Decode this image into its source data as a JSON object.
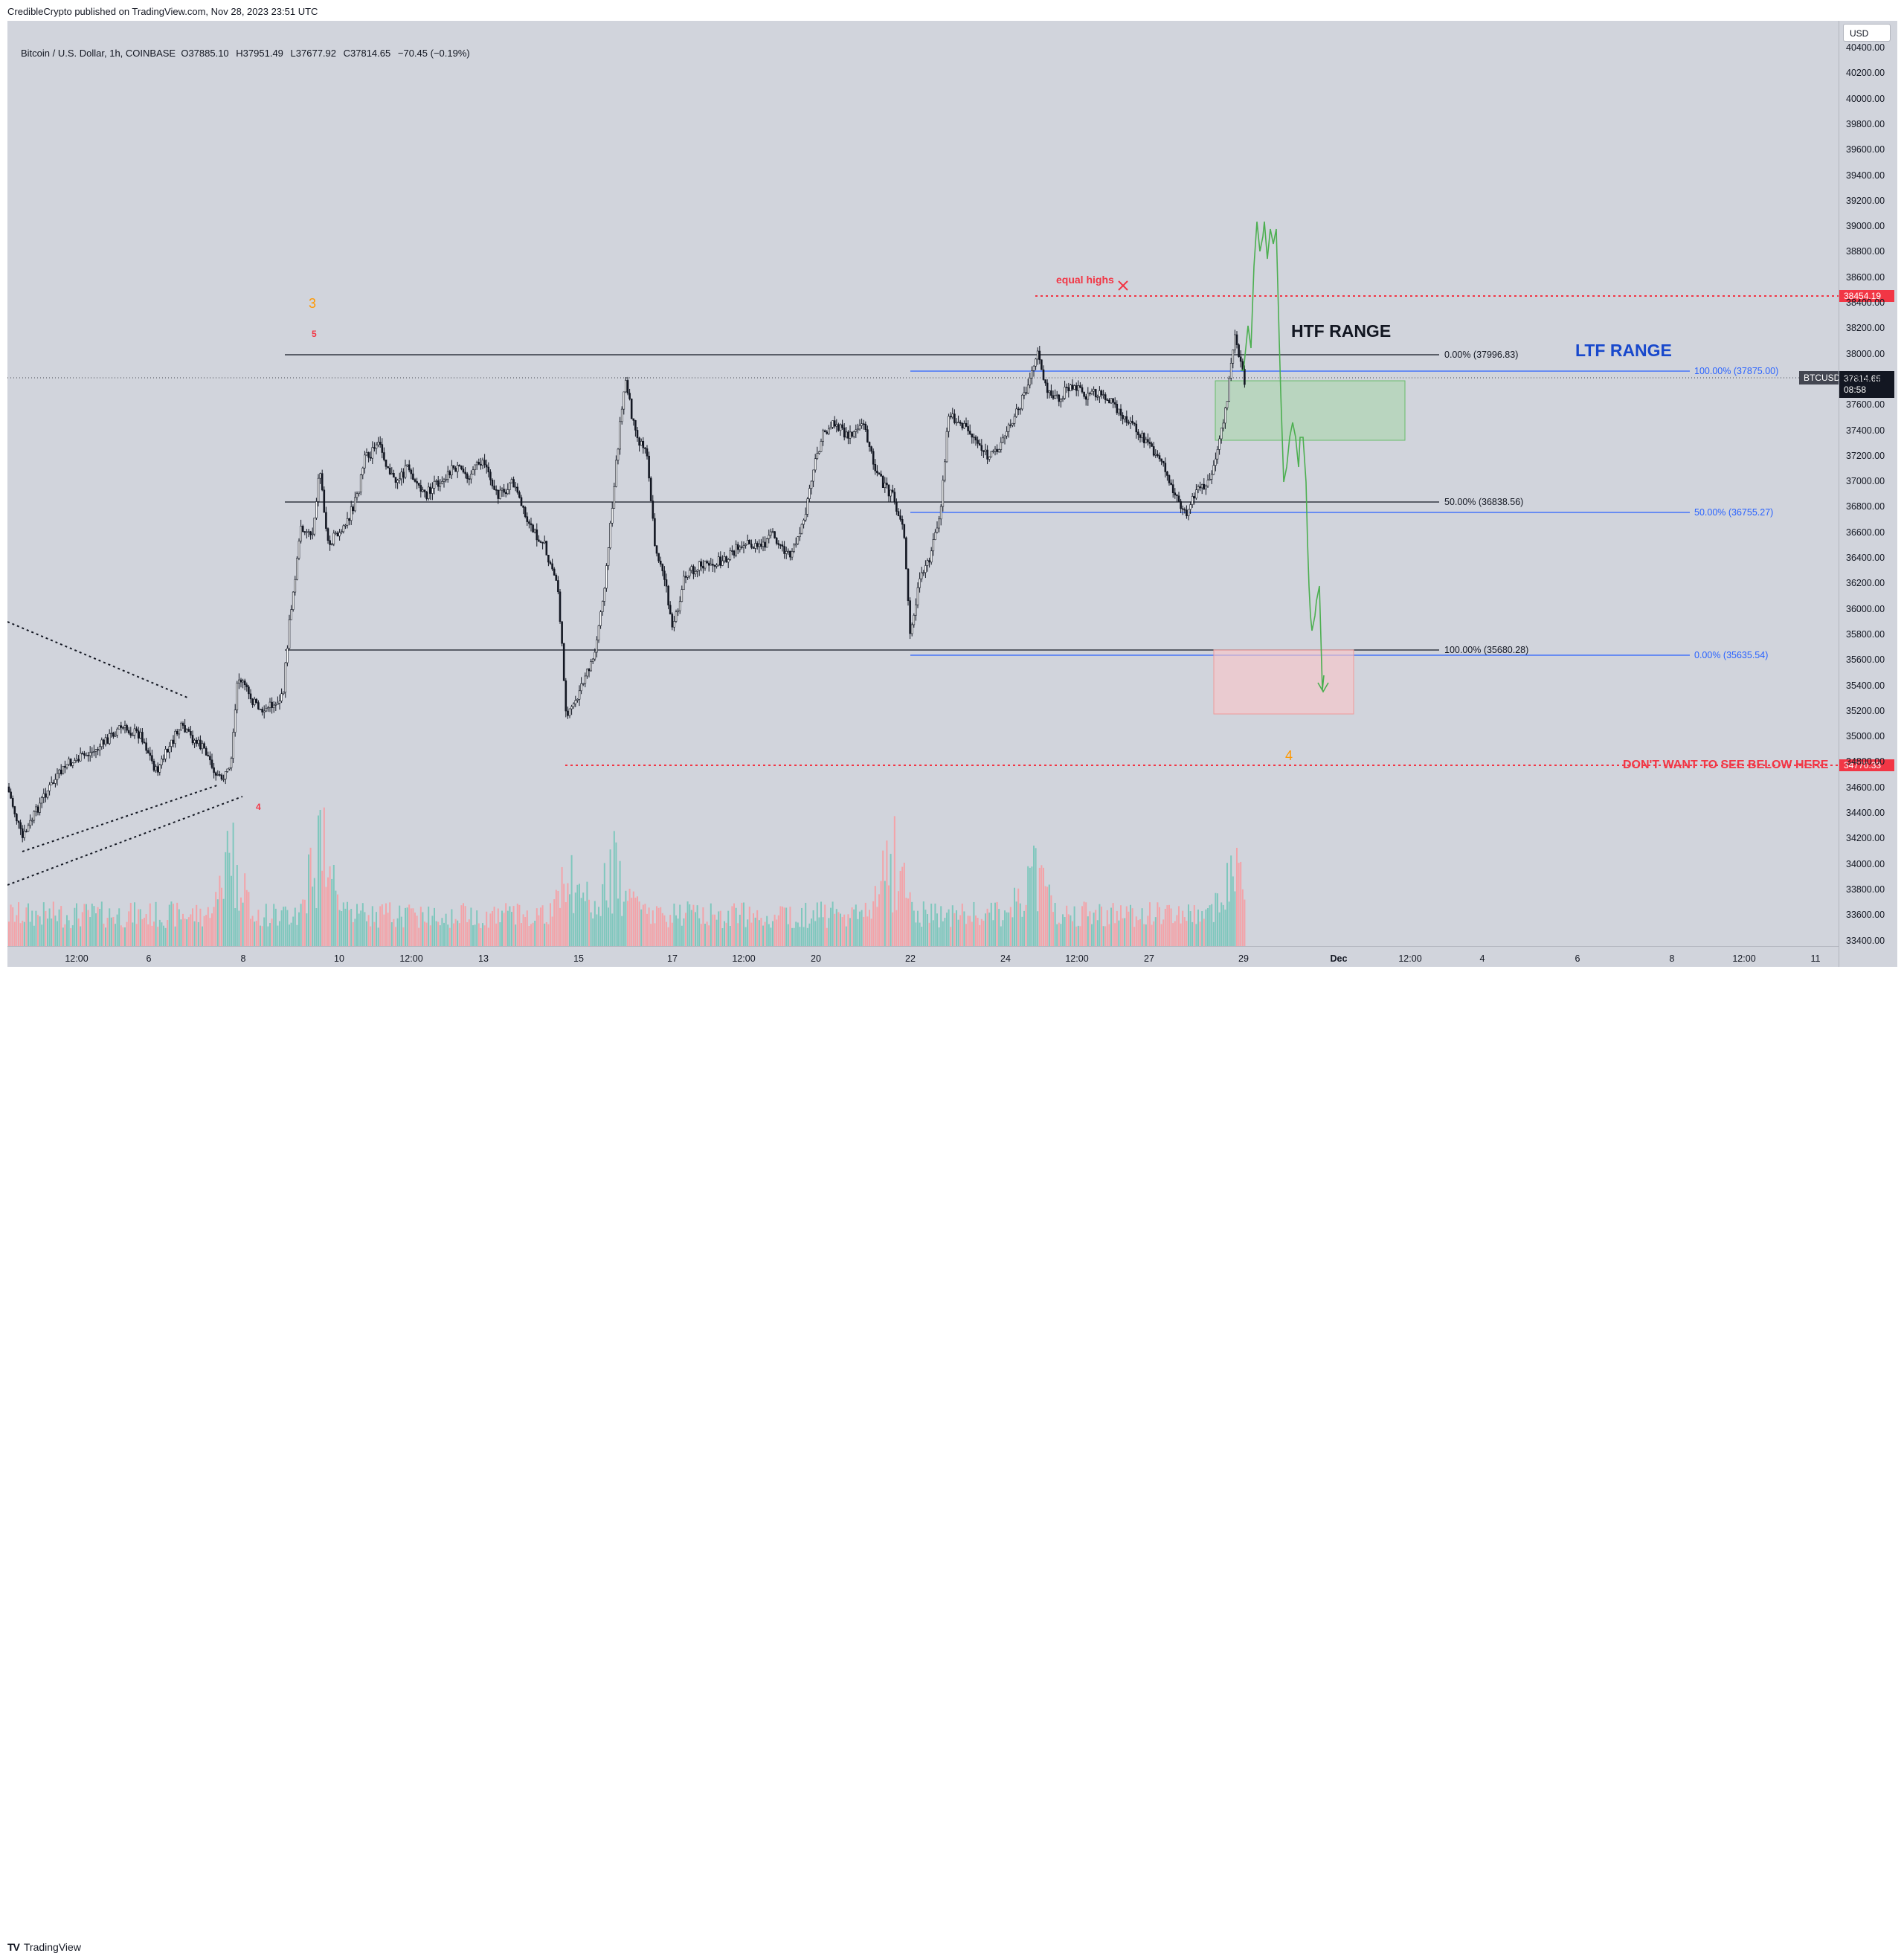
{
  "header": {
    "publisher_text": "CredibleCrypto published on TradingView.com, Nov 28, 2023 23:51 UTC"
  },
  "symbol": {
    "name": "Bitcoin / U.S. Dollar, 1h, COINBASE",
    "open": "O37885.10",
    "high": "H37951.49",
    "low": "L37677.92",
    "close": "C37814.65",
    "change": "−70.45 (−0.19%)"
  },
  "currency_button": "USD",
  "price_axis": {
    "ticks": [
      "40400.00",
      "40200.00",
      "40000.00",
      "39800.00",
      "39600.00",
      "39400.00",
      "39200.00",
      "39000.00",
      "38800.00",
      "38600.00",
      "38400.00",
      "38200.00",
      "38000.00",
      "37800.00",
      "37600.00",
      "37400.00",
      "37200.00",
      "37000.00",
      "36800.00",
      "36600.00",
      "36400.00",
      "36200.00",
      "36000.00",
      "35800.00",
      "35600.00",
      "35400.00",
      "35200.00",
      "35000.00",
      "34800.00",
      "34600.00",
      "34400.00",
      "34200.00",
      "34000.00",
      "33800.00",
      "33600.00",
      "33400.00"
    ],
    "equal_highs_tag": "38454.19",
    "dont_want_tag": "34770.33",
    "current_price": "37814.65",
    "countdown": "08:58",
    "symbol_tag": "BTCUSD"
  },
  "time_axis": {
    "ticks": [
      "12:00",
      "6",
      "8",
      "10",
      "12:00",
      "13",
      "15",
      "17",
      "12:00",
      "20",
      "22",
      "24",
      "12:00",
      "27",
      "29",
      "Dec",
      "12:00",
      "4",
      "6",
      "8",
      "12:00",
      "11"
    ]
  },
  "annotations": {
    "equal_highs": "equal highs",
    "htf_range": "HTF RANGE",
    "ltf_range": "LTF RANGE",
    "dont_want": "DON'T WANT TO SEE BELOW HERE",
    "wave_3": "3",
    "wave_5": "5",
    "wave_4_left": "4",
    "wave_4_right": "4",
    "htf_fib_0": "0.00% (37996.83)",
    "htf_fib_50": "50.00% (36838.56)",
    "htf_fib_100": "100.00% (35680.28)",
    "ltf_fib_100": "100.00% (37875.00)",
    "ltf_fib_50": "50.00% (36755.27)",
    "ltf_fib_0": "0.00% (35635.54)"
  },
  "colors": {
    "chart_bg": "#d1d4dc",
    "red_line": "#f23645",
    "blue_line": "#2962ff",
    "green_path": "#4caf50",
    "htf_text": "#131722",
    "ltf_text": "#1848cc",
    "volume_up": "#7fc7bd",
    "volume_down": "#f3a3a8"
  },
  "footer": {
    "brand": "TradingView"
  }
}
